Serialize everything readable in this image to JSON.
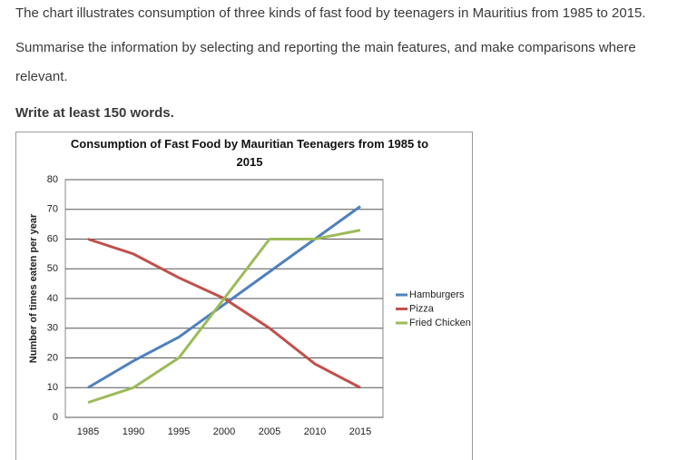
{
  "prompt": [
    "The chart illustrates consumption of three kinds of fast food by teenagers in Mauritius from 1985 to 2015.",
    "Summarise the information by selecting and reporting the main features, and make comparisons where relevant.",
    "Write at least 150 words."
  ],
  "chart_data": {
    "type": "line",
    "title": "Consumption of Fast Food by Mauritian Teenagers from 1985 to 2015",
    "y_label": "Number of times eaten per year",
    "categories": [
      "1985",
      "1990",
      "1995",
      "2000",
      "2005",
      "2010",
      "2015"
    ],
    "series": [
      {
        "name": "Hamburgers",
        "color": "#4f81bd",
        "values": [
          10,
          19,
          27,
          38,
          49,
          60,
          71
        ]
      },
      {
        "name": "Pizza",
        "color": "#c0504d",
        "values": [
          60,
          55,
          47,
          40,
          30,
          18,
          10
        ]
      },
      {
        "name": "Fried Chicken",
        "color": "#9bbb59",
        "values": [
          5,
          10,
          20,
          40,
          60,
          60,
          63
        ]
      }
    ],
    "ylim": [
      0,
      80
    ],
    "yticks": [
      0,
      10,
      20,
      30,
      40,
      50,
      60,
      70,
      80
    ],
    "grid": true,
    "legend": "right"
  }
}
